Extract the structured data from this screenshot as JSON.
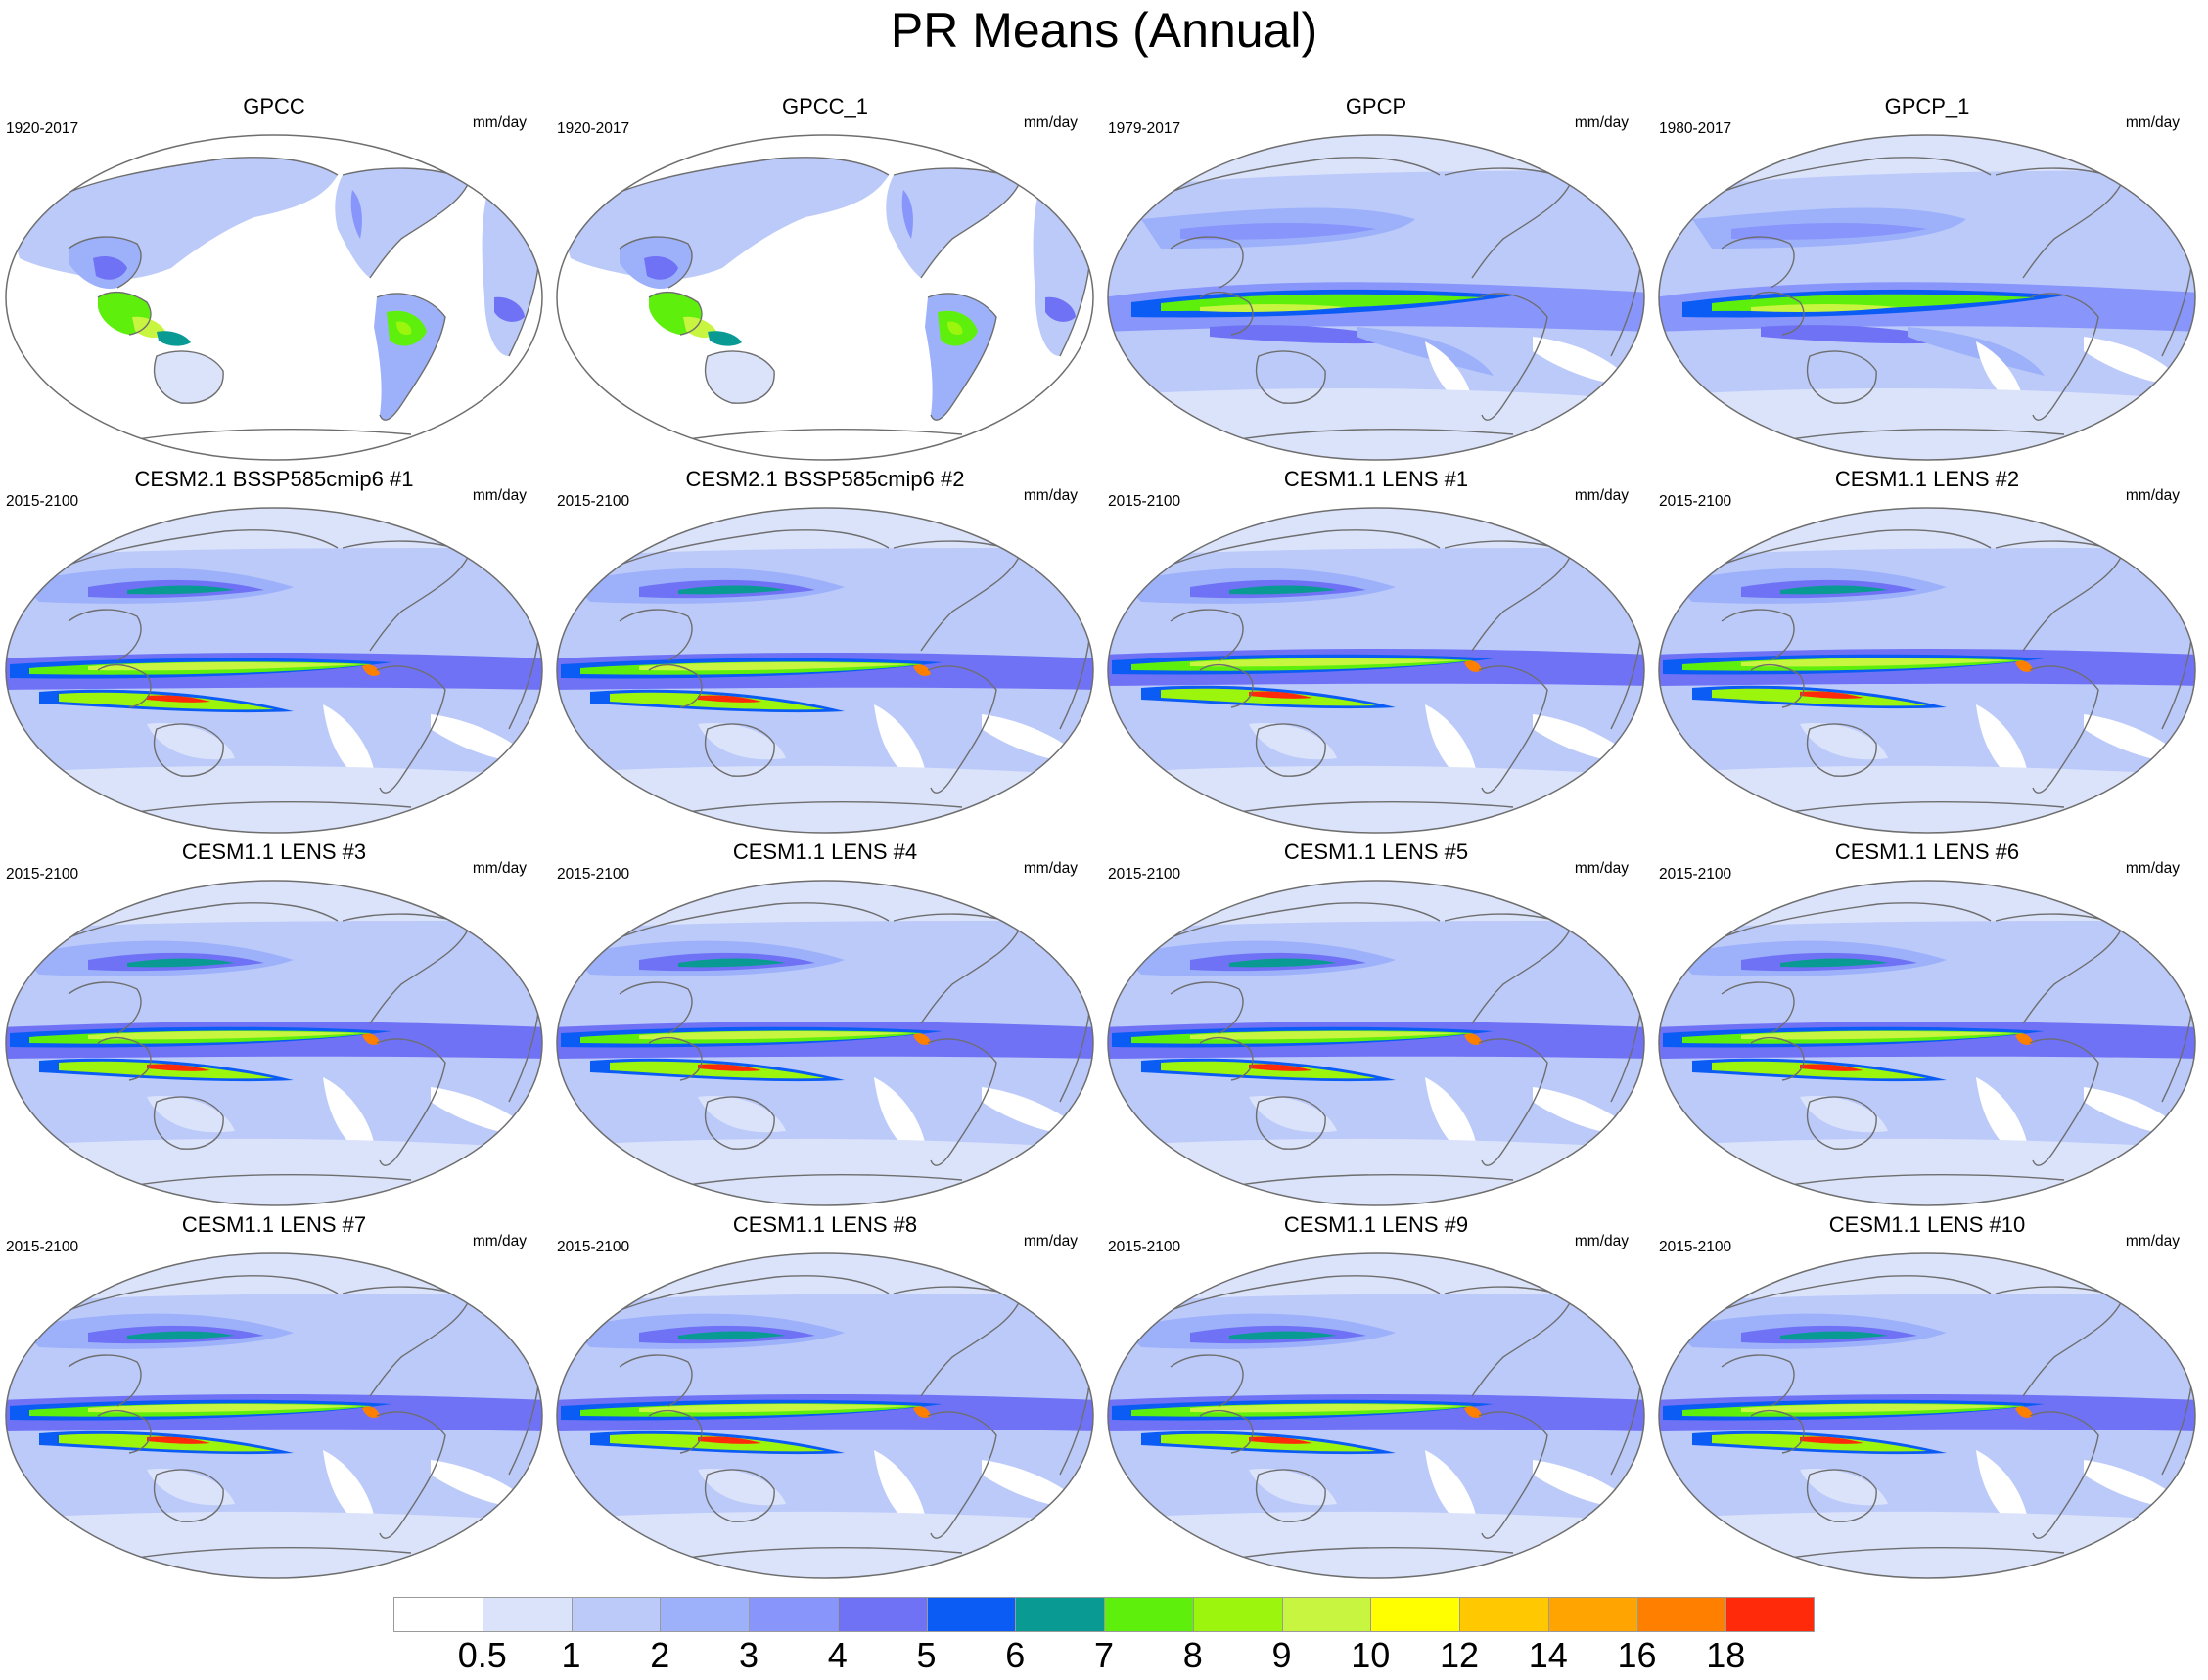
{
  "title": "PR Means (Annual)",
  "units": "mm/day",
  "panels": [
    {
      "title": "GPCC",
      "period": "1920-2017",
      "field": "obs_land"
    },
    {
      "title": "GPCC_1",
      "period": "1920-2017",
      "field": "obs_land"
    },
    {
      "title": "GPCP",
      "period": "1979-2017",
      "field": "obs_global"
    },
    {
      "title": "GPCP_1",
      "period": "1980-2017",
      "field": "obs_global"
    },
    {
      "title": "CESM2.1 BSSP585cmip6 #1",
      "period": "2015-2100",
      "field": "model_cesm2"
    },
    {
      "title": "CESM2.1 BSSP585cmip6 #2",
      "period": "2015-2100",
      "field": "model_cesm2"
    },
    {
      "title": "CESM1.1 LENS #1",
      "period": "2015-2100",
      "field": "model_lens"
    },
    {
      "title": "CESM1.1 LENS #2",
      "period": "2015-2100",
      "field": "model_lens"
    },
    {
      "title": "CESM1.1 LENS #3",
      "period": "2015-2100",
      "field": "model_lens"
    },
    {
      "title": "CESM1.1 LENS #4",
      "period": "2015-2100",
      "field": "model_lens"
    },
    {
      "title": "CESM1.1 LENS #5",
      "period": "2015-2100",
      "field": "model_lens"
    },
    {
      "title": "CESM1.1 LENS #6",
      "period": "2015-2100",
      "field": "model_lens"
    },
    {
      "title": "CESM1.1 LENS #7",
      "period": "2015-2100",
      "field": "model_lens"
    },
    {
      "title": "CESM1.1 LENS #8",
      "period": "2015-2100",
      "field": "model_lens"
    },
    {
      "title": "CESM1.1 LENS #9",
      "period": "2015-2100",
      "field": "model_lens"
    },
    {
      "title": "CESM1.1 LENS #10",
      "period": "2015-2100",
      "field": "model_lens"
    }
  ],
  "colorbar": {
    "colors": [
      "#ffffff",
      "#dbe3fb",
      "#bccafa",
      "#9db1fb",
      "#8895fb",
      "#6f72f5",
      "#0a5cf4",
      "#0a9a94",
      "#5ef00c",
      "#9bf50d",
      "#c8f53f",
      "#ffff00",
      "#ffc800",
      "#ffa400",
      "#ff7f00",
      "#ff2a0a"
    ],
    "labels": [
      "0.5",
      "1",
      "2",
      "3",
      "4",
      "5",
      "6",
      "7",
      "8",
      "9",
      "10",
      "12",
      "14",
      "16",
      "18"
    ]
  }
}
